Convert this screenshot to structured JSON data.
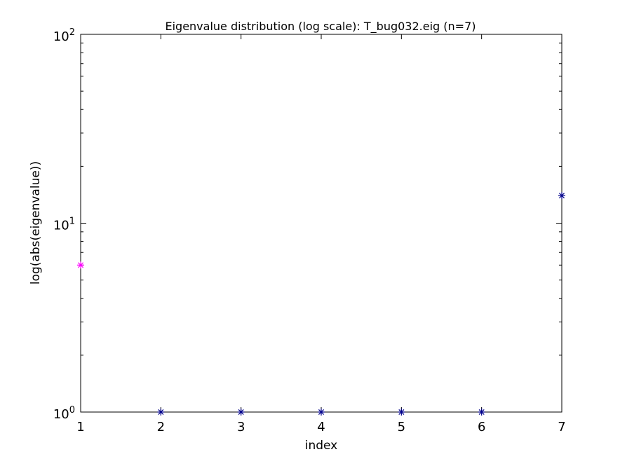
{
  "chart_data": {
    "type": "scatter",
    "title": "Eigenvalue distribution (log scale): T_bug032.eig (n=7)",
    "xlabel": "index",
    "ylabel": "log(abs(eigenvalue))",
    "xlim": [
      1,
      7
    ],
    "ylim": [
      1,
      100
    ],
    "yscale": "log",
    "grid": false,
    "marker": "*",
    "x_ticks": [
      "1",
      "2",
      "3",
      "4",
      "5",
      "6",
      "7"
    ],
    "y_ticks": [
      {
        "base": "10",
        "exp": "0",
        "value": 1
      },
      {
        "base": "10",
        "exp": "1",
        "value": 10
      },
      {
        "base": "10",
        "exp": "2",
        "value": 100
      }
    ],
    "points": [
      {
        "x": 1,
        "y": 6,
        "color": "#ff00ff"
      },
      {
        "x": 2,
        "y": 1,
        "color": "#00008b"
      },
      {
        "x": 3,
        "y": 1,
        "color": "#00008b"
      },
      {
        "x": 4,
        "y": 1,
        "color": "#00008b"
      },
      {
        "x": 5,
        "y": 1,
        "color": "#00008b"
      },
      {
        "x": 6,
        "y": 1,
        "color": "#00008b"
      },
      {
        "x": 7,
        "y": 14,
        "color": "#00008b"
      }
    ]
  }
}
